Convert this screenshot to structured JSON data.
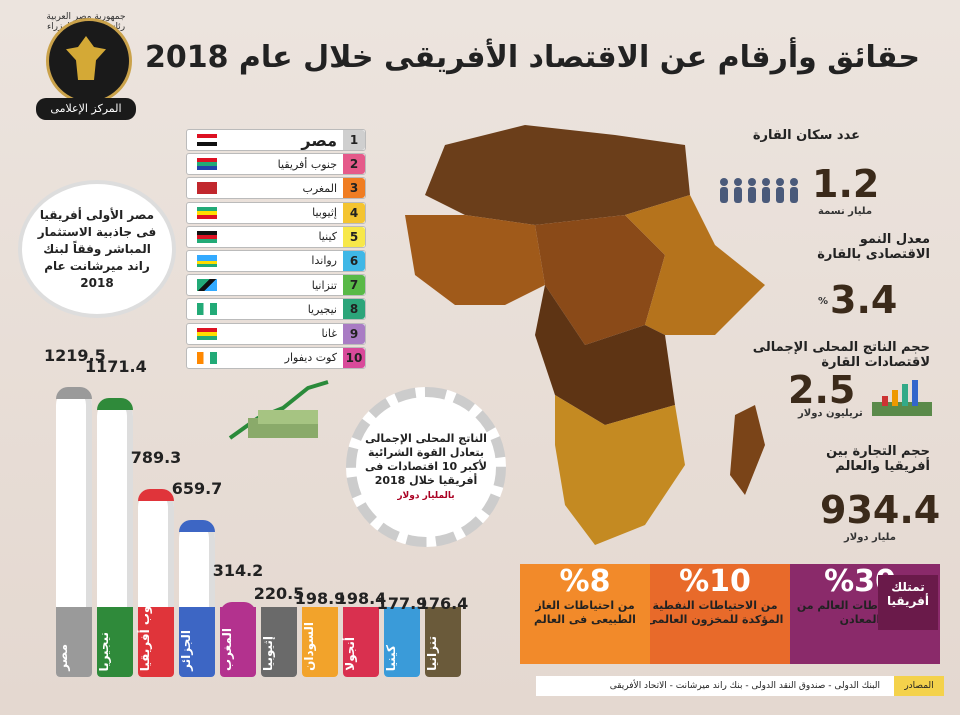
{
  "title": "حقائق وأرقام عن الاقتصاد الأفريقى خلال عام 2018",
  "logo": {
    "top_text": "جمهورية مصر العربية رئاسة مجلس الوزراء",
    "bottom_text": "المركز الإعلامى"
  },
  "ranking": [
    {
      "rank": "1",
      "name": "مصر",
      "color": "#cfcfcf"
    },
    {
      "rank": "2",
      "name": "جنوب أفريقيا",
      "color": "#e55a8a"
    },
    {
      "rank": "3",
      "name": "المغرب",
      "color": "#f07d22"
    },
    {
      "rank": "4",
      "name": "إثيوبيا",
      "color": "#f4c430"
    },
    {
      "rank": "5",
      "name": "كينيا",
      "color": "#f7e84a"
    },
    {
      "rank": "6",
      "name": "رواندا",
      "color": "#3fb7e6"
    },
    {
      "rank": "7",
      "name": "تنزانيا",
      "color": "#59b947"
    },
    {
      "rank": "8",
      "name": "نيجيريا",
      "color": "#2ca57a"
    },
    {
      "rank": "9",
      "name": "غانا",
      "color": "#a97cc4"
    },
    {
      "rank": "10",
      "name": "كوت ديفوار",
      "color": "#d94a9a"
    }
  ],
  "callout": "مصر الأولى أفريقيا فى جاذبية الاستثمار المباشر وفقاً لبنك راند ميرشانت عام 2018",
  "stats": {
    "population_label": "عدد سكان القارة",
    "population_value": "1.2",
    "population_unit": "مليار نسمة",
    "growth_label": "معدل النمو الاقتصادى بالقارة",
    "growth_value": "3.4",
    "growth_unit": "%",
    "gdp_label": "حجم الناتج المحلى الإجمالى لاقتصادات القارة",
    "gdp_value": "2.5",
    "gdp_unit": "تريليون دولار",
    "trade_label": "حجم التجارة بين أفريقيا والعالم",
    "trade_value": "934.4",
    "trade_unit": "مليار دولار"
  },
  "gear_text": "الناتج المحلى الإجمالى بتعادل القوة الشرائية لأكبر 10 اقتصادات فى أفريقيا خلال 2018",
  "gear_unit": "بالمليار دولار",
  "chart_data": {
    "type": "bar",
    "categories": [
      "مصر",
      "نيجيريا",
      "جنوب أفريقيا",
      "الجزائر",
      "المغرب",
      "إثيوبيا",
      "السودان",
      "أنجولا",
      "كينيا",
      "تنزانيا"
    ],
    "values": [
      1219.5,
      1171.4,
      789.3,
      659.7,
      314.2,
      220.5,
      198.9,
      198.4,
      177.9,
      176.4
    ],
    "labels": [
      "1219.5",
      "1171.4",
      "789.3",
      "659.7",
      "314.2",
      "220.5",
      "198.9",
      "198.4",
      "177.9",
      "176.4"
    ],
    "colors": [
      "#9a9a9a",
      "#2f8a3a",
      "#e0343a",
      "#3d66c4",
      "#b3328e",
      "#6a6a6a",
      "#f2a32b",
      "#d9304f",
      "#3a9bd9",
      "#6a5a3a"
    ]
  },
  "banners": [
    {
      "pct": "%30",
      "text": "من احتياطات العالم من المعادن",
      "color": "#8a2a6a"
    },
    {
      "pct": "%10",
      "text": "من الاحتياطات النفطية المؤكدة للمخزون العالمى",
      "color": "#e86a2a"
    },
    {
      "pct": "%8",
      "text": "من احتياطات الغاز الطبيعى فى العالم",
      "color": "#f28a2a"
    }
  ],
  "banner_tag": "تمتلك أفريقيا",
  "sources_label": "المصادر",
  "sources": "البنك الدولى - صندوق النقد الدولى - بنك راند ميرشانت - الاتحاد الأفريقى"
}
